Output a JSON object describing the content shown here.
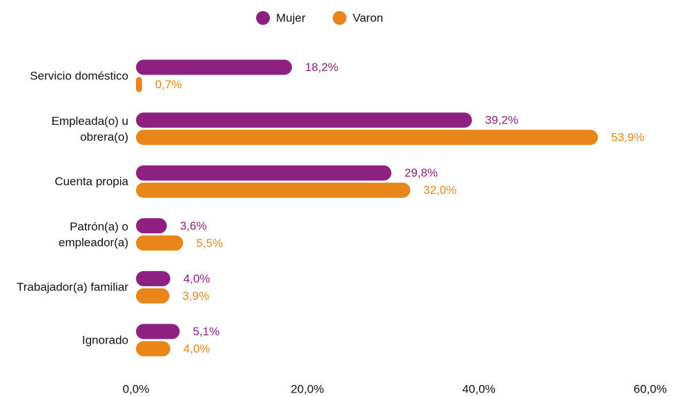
{
  "chart_data": {
    "type": "bar",
    "orientation": "horizontal",
    "categories": [
      "Servicio doméstico",
      "Empleada(o) u obrera(o)",
      "Cuenta propia",
      "Patrón(a) o empleador(a)",
      "Trabajador(a) familiar",
      "Ignorado"
    ],
    "series": [
      {
        "name": "Mujer",
        "color": "#8e2082",
        "values": [
          18.2,
          39.2,
          29.8,
          3.6,
          4.0,
          5.1
        ],
        "value_labels": [
          "18,2%",
          "39,2%",
          "29,8%",
          "3,6%",
          "4,0%",
          "5,1%"
        ]
      },
      {
        "name": "Varon",
        "color": "#e8861a",
        "values": [
          0.7,
          53.9,
          32.0,
          5.5,
          3.9,
          4.0
        ],
        "value_labels": [
          "0,7%",
          "53,9%",
          "32,0%",
          "5,5%",
          "3,9%",
          "4,0%"
        ]
      }
    ],
    "xlim": [
      0,
      60
    ],
    "xticks": [
      {
        "value": 0,
        "label": "0,0%"
      },
      {
        "value": 20,
        "label": "20,0%"
      },
      {
        "value": 40,
        "label": "40,0%"
      },
      {
        "value": 60,
        "label": "60,0%"
      }
    ],
    "legend": "top"
  }
}
